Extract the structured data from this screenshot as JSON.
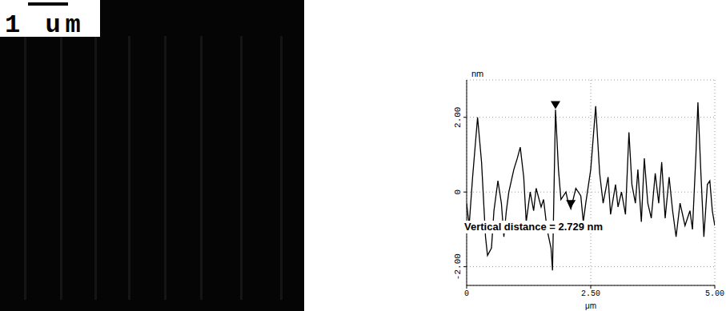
{
  "image": {
    "scale_bar_label": "1 um"
  },
  "chart_data": {
    "type": "line",
    "x_label": "μm",
    "y_label": "nm",
    "annotation": "Vertical distance = 2.729 nm",
    "color": "#000000",
    "grid": true,
    "xlim": [
      0,
      5
    ],
    "xticks": [
      0,
      {
        "value": 2.5,
        "label": "2.50"
      },
      {
        "value": 5,
        "label": "5.00"
      }
    ],
    "ylim": [
      -2.5,
      3
    ],
    "yticks": [
      {
        "value": -2,
        "label": "-2.00"
      },
      0,
      {
        "value": 2,
        "label": "2.00"
      }
    ],
    "x": [
      0,
      0.05,
      0.12,
      0.22,
      0.3,
      0.38,
      0.42,
      0.5,
      0.55,
      0.63,
      0.7,
      0.75,
      0.8,
      0.85,
      0.95,
      1.02,
      1.08,
      1.15,
      1.2,
      1.28,
      1.35,
      1.4,
      1.5,
      1.55,
      1.62,
      1.7,
      1.73,
      1.79,
      1.85,
      1.9,
      2.0,
      2.05,
      2.1,
      2.2,
      2.3,
      2.35,
      2.4,
      2.5,
      2.6,
      2.68,
      2.75,
      2.85,
      2.9,
      3.0,
      3.05,
      3.12,
      3.2,
      3.27,
      3.33,
      3.4,
      3.45,
      3.52,
      3.58,
      3.65,
      3.72,
      3.8,
      3.87,
      3.93,
      4.0,
      4.08,
      4.15,
      4.22,
      4.3,
      4.4,
      4.5,
      4.55,
      4.62,
      4.66,
      4.72,
      4.78,
      4.85,
      4.9,
      4.95,
      5.0
    ],
    "values": [
      -0.3,
      -0.9,
      0.4,
      2.0,
      0.8,
      -1.2,
      -1.7,
      -1.5,
      -0.5,
      0.3,
      -0.3,
      -1.2,
      -0.5,
      0.0,
      0.6,
      0.9,
      1.2,
      0.4,
      -0.8,
      0.0,
      -0.5,
      0.1,
      -0.4,
      -0.2,
      -1.0,
      -1.5,
      -2.1,
      2.2,
      0.6,
      -0.2,
      0.0,
      -0.3,
      -0.45,
      0.1,
      -0.1,
      -0.8,
      -0.3,
      0.6,
      2.3,
      0.5,
      -0.3,
      0.4,
      -0.6,
      0.2,
      -0.4,
      0.0,
      -0.6,
      1.6,
      0.2,
      -0.3,
      0.6,
      -0.8,
      0.9,
      -0.3,
      -0.7,
      0.5,
      -0.3,
      0.8,
      -0.7,
      0.4,
      -0.5,
      -1.2,
      -0.3,
      -0.9,
      -0.5,
      -1.0,
      1.0,
      2.4,
      0.5,
      -1.2,
      0.2,
      0.3,
      -0.5,
      -0.9
    ],
    "cursors": {
      "x": [
        1.79,
        2.1
      ],
      "values": [
        2.2,
        -0.45
      ],
      "marker": "triangle-down",
      "color": "#000000"
    }
  }
}
